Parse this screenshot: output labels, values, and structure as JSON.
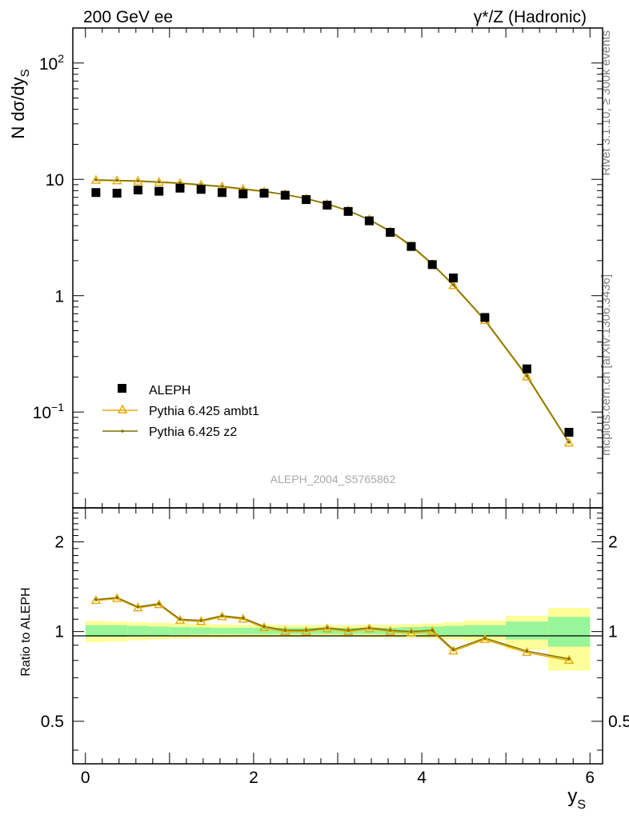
{
  "header": {
    "left": "200 GeV ee",
    "right": "γ*/Z (Hadronic)"
  },
  "side_labels": {
    "rivet": "Rivet 3.1.10, ≥ 300k events",
    "mcplots": "mcplots.cern.ch [arXiv:1306.3436]"
  },
  "watermark": "ALEPH_2004_S5765862",
  "colors": {
    "data": "#000000",
    "ambt1": "#e8a800",
    "z2": "#7a7000",
    "band_inner": "#99f599",
    "band_outer": "#fdfd99"
  },
  "chart_data": [
    {
      "type": "scatter",
      "panel": "main",
      "ylabel": "N dσ/dy",
      "ylabel_sub": "S",
      "yscale": "log",
      "ylim": [
        0.015,
        200
      ],
      "xlim": [
        -0.15,
        6.15
      ],
      "yticks": [
        {
          "value": 100,
          "base": "10",
          "exp": "2"
        },
        {
          "value": 10,
          "base": "10",
          "exp": ""
        },
        {
          "value": 1,
          "base": "1",
          "exp": ""
        },
        {
          "value": 0.1,
          "base": "10",
          "exp": "−1"
        }
      ],
      "legend": {
        "placement": "lower-left",
        "entries": [
          "ALEPH",
          "Pythia 6.425 ambt1",
          "Pythia 6.425 z2"
        ]
      },
      "x": [
        0.125,
        0.375,
        0.625,
        0.875,
        1.125,
        1.375,
        1.625,
        1.875,
        2.125,
        2.375,
        2.625,
        2.875,
        3.125,
        3.375,
        3.625,
        3.875,
        4.125,
        4.375,
        4.75,
        5.25,
        5.75
      ],
      "series": [
        {
          "name": "ALEPH",
          "values": [
            7.7,
            7.6,
            8.1,
            7.9,
            8.4,
            8.2,
            7.7,
            7.5,
            7.6,
            7.3,
            6.7,
            6.0,
            5.3,
            4.4,
            3.5,
            2.65,
            1.85,
            1.42,
            0.65,
            0.235,
            0.067
          ]
        },
        {
          "name": "Pythia 6.425 ambt1",
          "values": [
            9.8,
            9.7,
            9.6,
            9.4,
            9.2,
            8.9,
            8.6,
            8.2,
            7.8,
            7.4,
            6.8,
            6.1,
            5.35,
            4.5,
            3.55,
            2.65,
            1.85,
            1.22,
            0.61,
            0.2,
            0.054
          ]
        },
        {
          "name": "Pythia 6.425 z2",
          "values": [
            9.9,
            9.8,
            9.7,
            9.5,
            9.3,
            9.0,
            8.7,
            8.3,
            7.9,
            7.4,
            6.85,
            6.15,
            5.4,
            4.5,
            3.6,
            2.7,
            1.88,
            1.24,
            0.62,
            0.205,
            0.055
          ]
        }
      ]
    },
    {
      "type": "line",
      "panel": "ratio",
      "ylabel": "Ratio to ALEPH",
      "xlabel": "y",
      "xlabel_sub": "S",
      "yscale": "log",
      "ylim": [
        0.36,
        2.6
      ],
      "xlim": [
        -0.15,
        6.15
      ],
      "yticks": [
        0.5,
        1,
        2
      ],
      "xticks": [
        0,
        2,
        4,
        6
      ],
      "x": [
        0.125,
        0.375,
        0.625,
        0.875,
        1.125,
        1.375,
        1.625,
        1.875,
        2.125,
        2.375,
        2.625,
        2.875,
        3.125,
        3.375,
        3.625,
        3.875,
        4.125,
        4.375,
        4.75,
        5.25,
        5.75
      ],
      "bins": [
        [
          0,
          0.25
        ],
        [
          0.25,
          0.5
        ],
        [
          0.5,
          0.75
        ],
        [
          0.75,
          1.0
        ],
        [
          1.0,
          1.25
        ],
        [
          1.25,
          1.5
        ],
        [
          1.5,
          1.75
        ],
        [
          1.75,
          2.0
        ],
        [
          2.0,
          2.25
        ],
        [
          2.25,
          2.5
        ],
        [
          2.5,
          2.75
        ],
        [
          2.75,
          3.0
        ],
        [
          3.0,
          3.25
        ],
        [
          3.25,
          3.5
        ],
        [
          3.5,
          3.75
        ],
        [
          3.75,
          4.0
        ],
        [
          4.0,
          4.25
        ],
        [
          4.25,
          4.5
        ],
        [
          4.5,
          5.0
        ],
        [
          5.0,
          5.5
        ],
        [
          5.5,
          6.0
        ]
      ],
      "band_inner": [
        [
          0.96,
          1.05
        ],
        [
          0.96,
          1.05
        ],
        [
          0.965,
          1.045
        ],
        [
          0.97,
          1.04
        ],
        [
          0.975,
          1.035
        ],
        [
          0.978,
          1.033
        ],
        [
          0.98,
          1.03
        ],
        [
          0.98,
          1.03
        ],
        [
          0.98,
          1.03
        ],
        [
          0.98,
          1.03
        ],
        [
          0.98,
          1.03
        ],
        [
          0.98,
          1.03
        ],
        [
          0.98,
          1.03
        ],
        [
          0.98,
          1.03
        ],
        [
          0.98,
          1.03
        ],
        [
          0.978,
          1.035
        ],
        [
          0.975,
          1.04
        ],
        [
          0.97,
          1.045
        ],
        [
          0.965,
          1.05
        ],
        [
          0.94,
          1.08
        ],
        [
          0.89,
          1.12
        ]
      ],
      "band_outer": [
        [
          0.92,
          1.085
        ],
        [
          0.925,
          1.08
        ],
        [
          0.935,
          1.075
        ],
        [
          0.94,
          1.07
        ],
        [
          0.945,
          1.065
        ],
        [
          0.95,
          1.06
        ],
        [
          0.952,
          1.058
        ],
        [
          0.955,
          1.055
        ],
        [
          0.955,
          1.055
        ],
        [
          0.957,
          1.053
        ],
        [
          0.958,
          1.052
        ],
        [
          0.958,
          1.052
        ],
        [
          0.958,
          1.052
        ],
        [
          0.956,
          1.054
        ],
        [
          0.955,
          1.055
        ],
        [
          0.952,
          1.06
        ],
        [
          0.948,
          1.065
        ],
        [
          0.94,
          1.075
        ],
        [
          0.93,
          1.09
        ],
        [
          0.87,
          1.13
        ],
        [
          0.74,
          1.2
        ]
      ],
      "series": [
        {
          "name": "Pythia 6.425 ambt1",
          "values": [
            1.27,
            1.29,
            1.2,
            1.23,
            1.09,
            1.08,
            1.12,
            1.1,
            1.03,
            1.0,
            1.0,
            1.02,
            1.0,
            1.02,
            1.0,
            0.99,
            1.0,
            0.86,
            0.94,
            0.85,
            0.8
          ]
        },
        {
          "name": "Pythia 6.425 z2",
          "values": [
            1.28,
            1.3,
            1.21,
            1.24,
            1.1,
            1.09,
            1.13,
            1.11,
            1.04,
            1.01,
            1.01,
            1.03,
            1.01,
            1.03,
            1.01,
            1.0,
            1.01,
            0.87,
            0.95,
            0.86,
            0.81
          ]
        }
      ]
    }
  ]
}
